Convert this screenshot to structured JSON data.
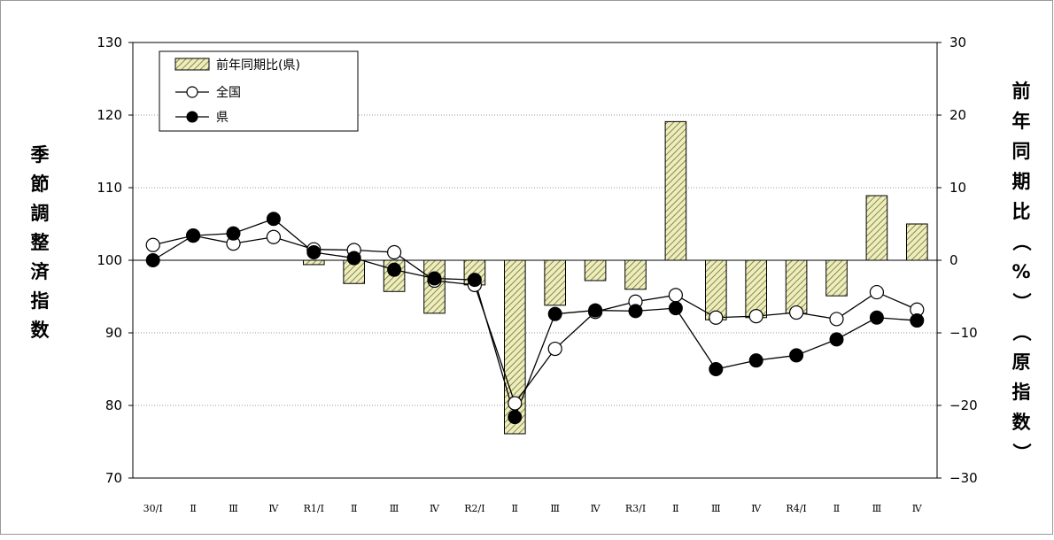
{
  "chart_data": {
    "type": "bar+line",
    "categories": [
      "30/Ⅰ",
      "Ⅱ",
      "Ⅲ",
      "Ⅳ",
      "R1/Ⅰ",
      "Ⅱ",
      "Ⅲ",
      "Ⅳ",
      "R2/Ⅰ",
      "Ⅱ",
      "Ⅲ",
      "Ⅳ",
      "R3/Ⅰ",
      "Ⅱ",
      "Ⅲ",
      "Ⅳ",
      "R4/Ⅰ",
      "Ⅱ",
      "Ⅲ",
      "Ⅳ"
    ],
    "left_axis": {
      "label": "季節調整済指数",
      "ylim": [
        70,
        130
      ],
      "ticks": [
        70,
        80,
        90,
        100,
        110,
        120,
        130
      ]
    },
    "right_axis": {
      "label": "前年同期比（%）（原指数）",
      "ylim": [
        -30,
        30
      ],
      "ticks": [
        30,
        20,
        10,
        0,
        -10,
        -20,
        -30
      ],
      "tick_labels": [
        "30",
        "20",
        "10",
        "0",
        "−10",
        "−20",
        "−30"
      ]
    },
    "series": [
      {
        "name": "前年同期比(県)",
        "kind": "bar",
        "axis": "right",
        "values": [
          null,
          null,
          null,
          null,
          -0.6,
          -3.2,
          -4.3,
          -7.3,
          -3.4,
          -23.9,
          -6.2,
          -2.8,
          -4.0,
          19.1,
          -8.2,
          -7.9,
          -7.3,
          -4.9,
          8.9,
          5.0
        ]
      },
      {
        "name": "全国",
        "kind": "line",
        "marker": "open",
        "axis": "left",
        "values": [
          102.1,
          103.4,
          102.3,
          103.2,
          101.5,
          101.4,
          101.1,
          97.2,
          96.6,
          80.3,
          87.8,
          92.9,
          94.3,
          95.2,
          92.1,
          92.3,
          92.8,
          91.9,
          95.6,
          93.2
        ]
      },
      {
        "name": "県",
        "kind": "line",
        "marker": "filled",
        "axis": "left",
        "values": [
          100.0,
          103.4,
          103.7,
          105.7,
          101.1,
          100.3,
          98.7,
          97.5,
          97.3,
          78.4,
          92.6,
          93.1,
          93.0,
          93.4,
          85.0,
          86.2,
          86.9,
          89.1,
          92.1,
          91.7
        ]
      }
    ],
    "grid": "horizontal dotted",
    "legend_position": "top-left",
    "colors": {
      "bar_fill": "#eeeebb",
      "bar_hatch": "#888855",
      "line": "#000000"
    }
  }
}
